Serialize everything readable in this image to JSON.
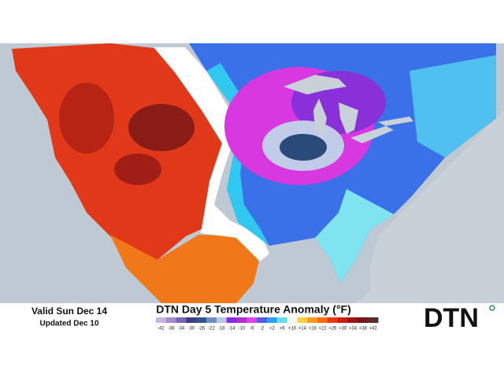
{
  "valid": "Valid Sun Dec 14",
  "updated": "Updated Dec 10",
  "title": "DTN Day 5 Temperature Anomaly (°F)",
  "logo": "DTN",
  "legend": {
    "labels": [
      "-42",
      "-38",
      "-34",
      "-30",
      "-26",
      "-22",
      "-18",
      "-14",
      "-10",
      "-6",
      "-2",
      "+2",
      "+6",
      "+10",
      "+14",
      "+18",
      "+22",
      "+26",
      "+30",
      "+34",
      "+38",
      "+42"
    ],
    "colors": [
      "#c9b3e3",
      "#a68ad0",
      "#7d62b6",
      "#3b3f7a",
      "#2f5690",
      "#6d8fc0",
      "#b7c6e2",
      "#8a2be2",
      "#b030d8",
      "#e040e8",
      "#5060e0",
      "#2aa0f0",
      "#60e0f0",
      "#ffffff",
      "#ffd040",
      "#ff9a20",
      "#ff6a10",
      "#e83a10",
      "#c81e10",
      "#9a1410",
      "#701818",
      "#5a2a2a"
    ]
  }
}
